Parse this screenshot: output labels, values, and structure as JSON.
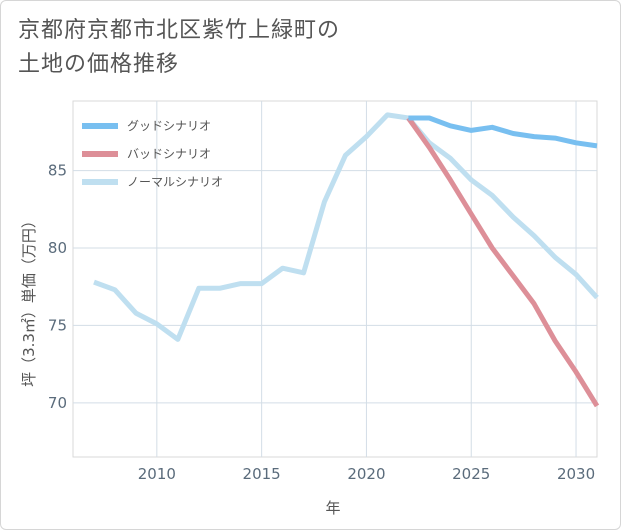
{
  "chart_data": {
    "type": "line",
    "title_line1": "京都府京都市北区紫竹上緑町の",
    "title_line2": "土地の価格推移",
    "xlabel": "年",
    "ylabel": "坪（3.3㎡）単価（万円）",
    "xlim": [
      2006,
      2031
    ],
    "ylim": [
      66.5,
      89.5
    ],
    "x_ticks": [
      2010,
      2015,
      2020,
      2025,
      2030
    ],
    "y_ticks": [
      70,
      75,
      80,
      85
    ],
    "x_tick_labels": [
      "2010",
      "2015",
      "2020",
      "2025",
      "2030"
    ],
    "y_tick_labels": [
      "70",
      "75",
      "80",
      "85"
    ],
    "grid": true,
    "legend_position": "top-left",
    "series": [
      {
        "name": "グッドシナリオ",
        "color": "#78bff0",
        "x": [
          2022,
          2023,
          2024,
          2025,
          2026,
          2027,
          2028,
          2029,
          2030,
          2031
        ],
        "values": [
          88.4,
          88.4,
          87.9,
          87.6,
          87.8,
          87.4,
          87.2,
          87.1,
          86.8,
          86.6
        ]
      },
      {
        "name": "バッドシナリオ",
        "color": "#dd8f98",
        "x": [
          2022,
          2023,
          2024,
          2025,
          2026,
          2027,
          2028,
          2029,
          2030,
          2031
        ],
        "values": [
          88.4,
          86.5,
          84.4,
          82.2,
          80.0,
          78.2,
          76.4,
          74.0,
          72.0,
          69.8
        ]
      },
      {
        "name": "ノーマルシナリオ",
        "color": "#bfdff0",
        "x": [
          2007,
          2008,
          2009,
          2010,
          2011,
          2012,
          2013,
          2014,
          2015,
          2016,
          2017,
          2018,
          2019,
          2020,
          2021,
          2022,
          2023,
          2024,
          2025,
          2026,
          2027,
          2028,
          2029,
          2030,
          2031
        ],
        "values": [
          77.8,
          77.3,
          75.8,
          75.1,
          74.1,
          77.4,
          77.4,
          77.7,
          77.7,
          78.7,
          78.4,
          83.0,
          86.0,
          87.2,
          88.6,
          88.4,
          86.8,
          85.8,
          84.4,
          83.4,
          82.0,
          80.8,
          79.4,
          78.3,
          76.8
        ]
      }
    ]
  }
}
